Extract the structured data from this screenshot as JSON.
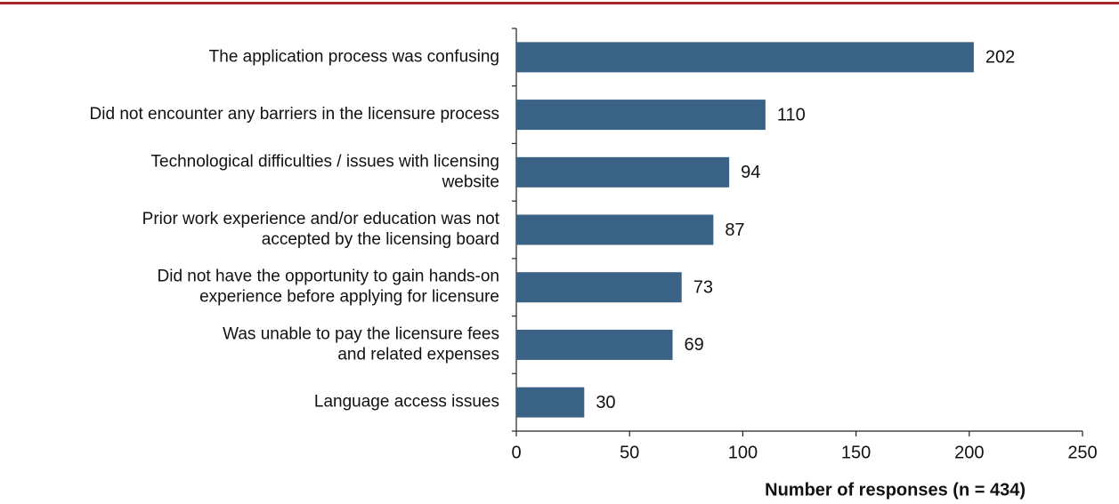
{
  "chart_data": {
    "type": "barh",
    "x_label": "Number of responses (n = 434)",
    "categories": [
      "The application process was confusing",
      "Did not encounter any barriers in the licensure process",
      "Technological difficulties / issues with licensing\nwebsite",
      "Prior work experience and/or education was not\naccepted by the licensing board",
      "Did not have the opportunity to gain hands-on\nexperience before applying for licensure",
      "Was unable to pay the licensure fees\nand related expenses",
      "Language access issues"
    ],
    "values": [
      202,
      110,
      94,
      87,
      73,
      69,
      30
    ],
    "color": "#3a6285",
    "xlim": [
      0,
      250
    ],
    "xticks": [
      0,
      50,
      100,
      150,
      200,
      250
    ]
  }
}
